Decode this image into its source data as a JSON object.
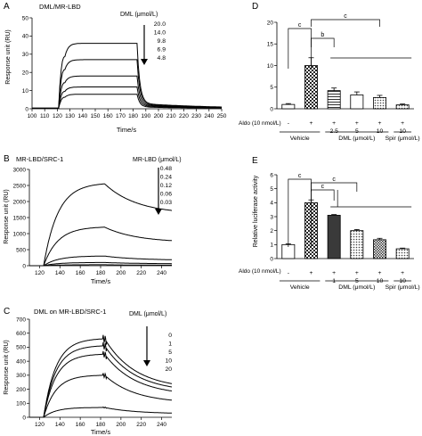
{
  "chart_data": [
    {
      "panel": "A",
      "type": "line",
      "title": "DML/MR-LBD",
      "xlabel": "Time/s",
      "ylabel": "Response unit (RU)",
      "xlim": [
        100,
        250
      ],
      "ylim": [
        0,
        50
      ],
      "xticks": [
        100,
        110,
        120,
        130,
        140,
        150,
        160,
        170,
        180,
        190,
        200,
        210,
        220,
        230,
        240,
        250
      ],
      "yticks": [
        0,
        10,
        20,
        30,
        40,
        50
      ],
      "legend_title": "DML (μmol/L)",
      "legend_items": [
        "20.0",
        "14.0",
        "9.8",
        "6.9",
        "4.8"
      ],
      "series": [
        {
          "name": "20.0",
          "plateau": 36,
          "post": 3
        },
        {
          "name": "14.0",
          "plateau": 27,
          "post": 2.5
        },
        {
          "name": "9.8",
          "plateau": 18,
          "post": 2
        },
        {
          "name": "6.9",
          "plateau": 12,
          "post": 1.5
        },
        {
          "name": "4.8",
          "plateau": 8,
          "post": 1
        }
      ]
    },
    {
      "panel": "B",
      "type": "line",
      "title": "MR-LBD/SRC-1",
      "xlabel": "Time/s",
      "ylabel": "Response unit (RU)",
      "xlim": [
        110,
        250
      ],
      "ylim": [
        0,
        3000
      ],
      "xticks": [
        120,
        140,
        160,
        180,
        200,
        220,
        240
      ],
      "yticks": [
        0,
        500,
        1000,
        1500,
        2000,
        2500,
        3000
      ],
      "legend_title": "MR-LBD (μmol/L)",
      "legend_items": [
        "0.48",
        "0.24",
        "0.12",
        "0.06",
        "0.03"
      ],
      "series": [
        {
          "name": "0.48",
          "peak": 2550,
          "end": 1600
        },
        {
          "name": "0.24",
          "peak": 1200,
          "end": 720
        },
        {
          "name": "0.12",
          "peak": 300,
          "end": 170
        },
        {
          "name": "0.06",
          "peak": 100,
          "end": 60
        },
        {
          "name": "0.03",
          "peak": 30,
          "end": 15
        }
      ]
    },
    {
      "panel": "C",
      "type": "line",
      "title": "DML on MR-LBD/SRC-1",
      "xlabel": "Time/s",
      "ylabel": "Response unit (RU)",
      "xlim": [
        110,
        250
      ],
      "ylim": [
        0,
        700
      ],
      "xticks": [
        120,
        140,
        160,
        180,
        200,
        220,
        240
      ],
      "yticks": [
        0,
        100,
        200,
        300,
        400,
        500,
        600,
        700
      ],
      "legend_title": "DML (μmol/L)",
      "legend_items": [
        "0",
        "1",
        "5",
        "10",
        "20"
      ],
      "series": [
        {
          "name": "0",
          "peak": 560,
          "end": 200
        },
        {
          "name": "1",
          "peak": 510,
          "end": 180
        },
        {
          "name": "5",
          "peak": 450,
          "end": 155
        },
        {
          "name": "10",
          "peak": 300,
          "end": 100
        },
        {
          "name": "20",
          "peak": 70,
          "end": 25
        }
      ]
    },
    {
      "panel": "D",
      "type": "bar",
      "ylabel": "",
      "ylim": [
        0,
        20
      ],
      "yticks": [
        0,
        5,
        10,
        15,
        20
      ],
      "row_label": "Aldo (10 nmol/L)",
      "aldo": [
        "-",
        "+",
        "+",
        "+",
        "+",
        "+"
      ],
      "doses": [
        "",
        "",
        "2.5",
        "5",
        "10",
        "10"
      ],
      "groups": [
        "Vehicle",
        "DML (μmol/L)",
        "Spir (μmol/L)"
      ],
      "values": [
        1.0,
        10.0,
        4.2,
        3.2,
        2.6,
        0.9
      ],
      "errors": [
        0.2,
        1.8,
        0.6,
        0.7,
        0.5,
        0.2
      ],
      "fills": [
        "white",
        "check",
        "hline",
        "white",
        "dots",
        "dots"
      ],
      "significance": [
        "c",
        "b",
        "c"
      ]
    },
    {
      "panel": "E",
      "type": "bar",
      "ylabel": "Relative luciferase activity",
      "ylim": [
        0,
        6
      ],
      "yticks": [
        0,
        1,
        2,
        3,
        4,
        5,
        6
      ],
      "row_label": "Aldo (10 nmol/L)",
      "aldo": [
        "-",
        "+",
        "+",
        "+",
        "+",
        "+"
      ],
      "doses": [
        "",
        "",
        "1",
        "5",
        "10",
        "10"
      ],
      "groups": [
        "Vehicle",
        "DML (μmol/L)",
        "Spir (μmol/L)"
      ],
      "values": [
        1.0,
        4.0,
        3.1,
        2.0,
        1.35,
        0.7
      ],
      "errors": [
        0.05,
        0.2,
        0.05,
        0.08,
        0.1,
        0.05
      ],
      "fills": [
        "white",
        "check",
        "dark",
        "dots",
        "check2",
        "dots"
      ],
      "significance": [
        "c",
        "c",
        "c"
      ]
    }
  ]
}
